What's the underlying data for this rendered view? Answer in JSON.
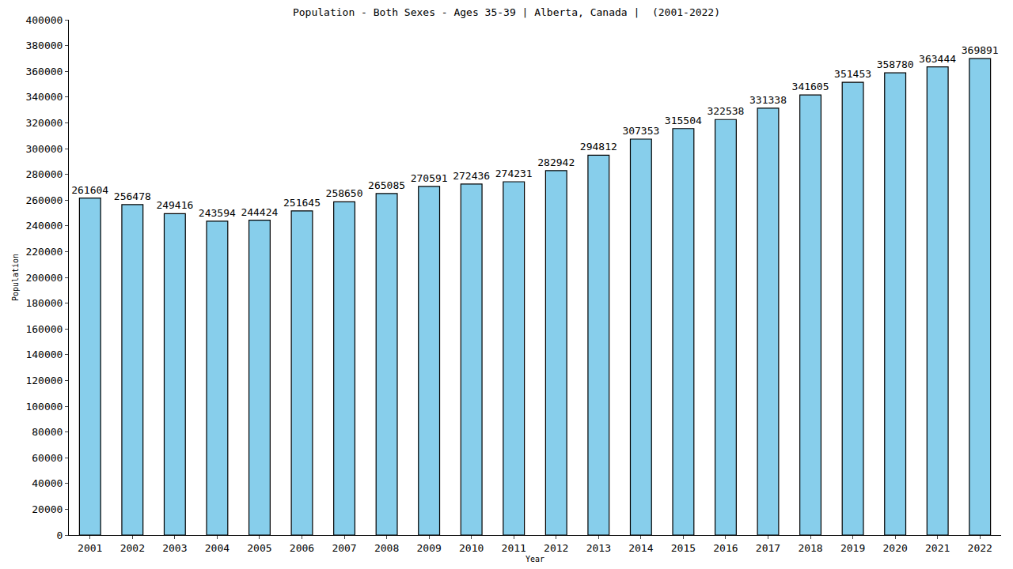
{
  "chart_data": {
    "type": "bar",
    "title": "Population - Both Sexes - Ages 35-39 | Alberta, Canada |  (2001-2022)",
    "x_label": "Year",
    "y_label": "Population",
    "categories": [
      "2001",
      "2002",
      "2003",
      "2004",
      "2005",
      "2006",
      "2007",
      "2008",
      "2009",
      "2010",
      "2011",
      "2012",
      "2013",
      "2014",
      "2015",
      "2016",
      "2017",
      "2018",
      "2019",
      "2020",
      "2021",
      "2022"
    ],
    "values": [
      261604,
      256478,
      249416,
      243594,
      244424,
      251645,
      258650,
      265085,
      270591,
      272436,
      274231,
      282942,
      294812,
      307353,
      315504,
      322538,
      331338,
      341605,
      351453,
      358780,
      363444,
      369891
    ],
    "color": "#87ceeb",
    "ylim": [
      0,
      400000
    ],
    "yticks": [
      0,
      20000,
      40000,
      60000,
      80000,
      100000,
      120000,
      140000,
      160000,
      180000,
      200000,
      220000,
      240000,
      260000,
      280000,
      300000,
      320000,
      340000,
      360000,
      380000,
      400000
    ],
    "grid": false,
    "data_labels": true
  }
}
